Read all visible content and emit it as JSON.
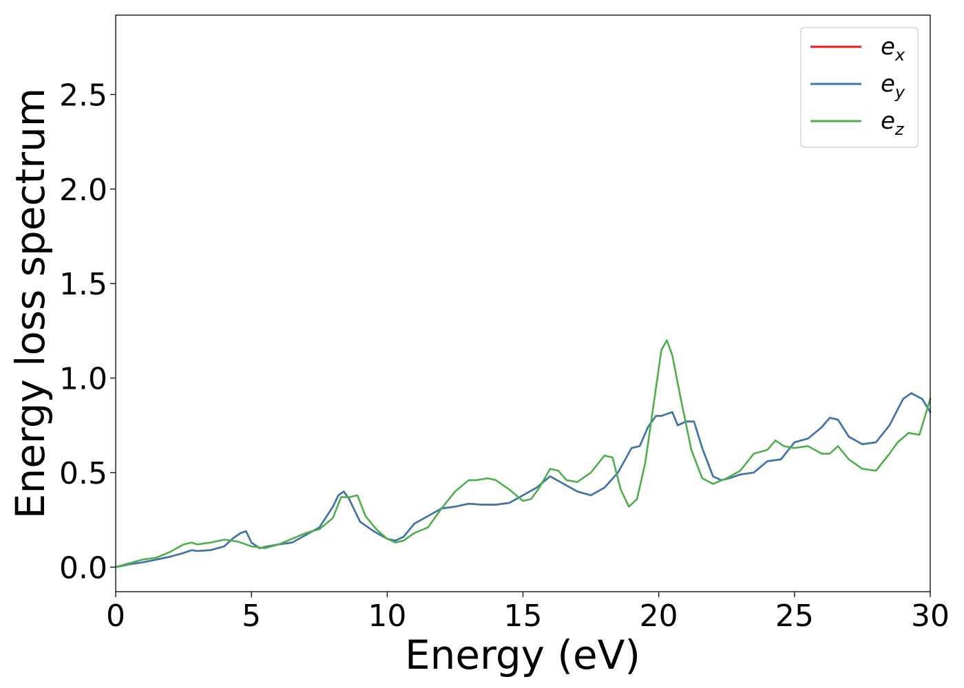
{
  "chart_data": {
    "type": "line",
    "title": "",
    "xlabel": "Energy (eV)",
    "ylabel": "Energy loss spectrum",
    "xlim": [
      0,
      30
    ],
    "ylim": [
      -0.13,
      2.92
    ],
    "xticks": [
      0,
      5,
      10,
      15,
      20,
      25,
      30
    ],
    "xtick_labels": [
      "0",
      "5",
      "10",
      "15",
      "20",
      "25",
      "30"
    ],
    "yticks": [
      0.0,
      0.5,
      1.0,
      1.5,
      2.0,
      2.5
    ],
    "ytick_labels": [
      "0.0",
      "0.5",
      "1.0",
      "1.5",
      "2.0",
      "2.5"
    ],
    "grid": false,
    "legend_position": "top-right",
    "series": [
      {
        "name": "e_x",
        "label_base": "e",
        "label_sub": "x",
        "color": "#e41a1c",
        "x": [
          0,
          0.5,
          1,
          1.5,
          2,
          2.5,
          2.8,
          3,
          3.5,
          4,
          4.3,
          4.6,
          4.8,
          5,
          5.3,
          5.6,
          6,
          6.5,
          7,
          7.5,
          8,
          8.2,
          8.4,
          8.6,
          9,
          9.5,
          10,
          10.3,
          10.6,
          11,
          11.5,
          12,
          12.5,
          13,
          13.5,
          14,
          14.5,
          15,
          15.5,
          16,
          16.5,
          17,
          17.5,
          18,
          18.5,
          19,
          19.3,
          19.6,
          19.9,
          20.1,
          20.3,
          20.5,
          20.7,
          21,
          21.3,
          21.6,
          22,
          22.3,
          22.6,
          23,
          23.5,
          24,
          24.5,
          25,
          25.5,
          26,
          26.3,
          26.6,
          27,
          27.5,
          28,
          28.5,
          29,
          29.3,
          29.7,
          30
        ],
        "values": [
          0,
          0.015,
          0.025,
          0.04,
          0.055,
          0.075,
          0.09,
          0.085,
          0.09,
          0.11,
          0.15,
          0.18,
          0.19,
          0.13,
          0.1,
          0.11,
          0.12,
          0.13,
          0.17,
          0.21,
          0.32,
          0.38,
          0.4,
          0.36,
          0.24,
          0.19,
          0.15,
          0.14,
          0.16,
          0.23,
          0.27,
          0.31,
          0.32,
          0.335,
          0.33,
          0.33,
          0.34,
          0.38,
          0.42,
          0.48,
          0.44,
          0.4,
          0.38,
          0.42,
          0.5,
          0.63,
          0.64,
          0.74,
          0.8,
          0.8,
          0.81,
          0.82,
          0.75,
          0.77,
          0.77,
          0.63,
          0.48,
          0.46,
          0.47,
          0.49,
          0.5,
          0.56,
          0.57,
          0.66,
          0.68,
          0.74,
          0.79,
          0.78,
          0.69,
          0.65,
          0.66,
          0.75,
          0.89,
          0.92,
          0.89,
          0.82
        ]
      },
      {
        "name": "e_y",
        "label_base": "e",
        "label_sub": "y",
        "color": "#3a78b0",
        "x": [
          0,
          0.5,
          1,
          1.5,
          2,
          2.5,
          2.8,
          3,
          3.5,
          4,
          4.3,
          4.6,
          4.8,
          5,
          5.3,
          5.6,
          6,
          6.5,
          7,
          7.5,
          8,
          8.2,
          8.4,
          8.6,
          9,
          9.5,
          10,
          10.3,
          10.6,
          11,
          11.5,
          12,
          12.5,
          13,
          13.5,
          14,
          14.5,
          15,
          15.5,
          16,
          16.5,
          17,
          17.5,
          18,
          18.5,
          19,
          19.3,
          19.6,
          19.9,
          20.1,
          20.3,
          20.5,
          20.7,
          21,
          21.3,
          21.6,
          22,
          22.3,
          22.6,
          23,
          23.5,
          24,
          24.5,
          25,
          25.5,
          26,
          26.3,
          26.6,
          27,
          27.5,
          28,
          28.5,
          29,
          29.3,
          29.7,
          30
        ],
        "values": [
          0,
          0.015,
          0.025,
          0.04,
          0.055,
          0.075,
          0.09,
          0.085,
          0.09,
          0.11,
          0.15,
          0.18,
          0.19,
          0.13,
          0.1,
          0.11,
          0.12,
          0.13,
          0.17,
          0.21,
          0.32,
          0.38,
          0.4,
          0.36,
          0.24,
          0.19,
          0.15,
          0.14,
          0.16,
          0.23,
          0.27,
          0.31,
          0.32,
          0.335,
          0.33,
          0.33,
          0.34,
          0.38,
          0.42,
          0.48,
          0.44,
          0.4,
          0.38,
          0.42,
          0.5,
          0.63,
          0.64,
          0.74,
          0.8,
          0.8,
          0.81,
          0.82,
          0.75,
          0.77,
          0.77,
          0.63,
          0.48,
          0.46,
          0.47,
          0.49,
          0.5,
          0.56,
          0.57,
          0.66,
          0.68,
          0.74,
          0.79,
          0.78,
          0.69,
          0.65,
          0.66,
          0.75,
          0.89,
          0.92,
          0.89,
          0.82
        ]
      },
      {
        "name": "e_z",
        "label_base": "e",
        "label_sub": "z",
        "color": "#4daf4a",
        "x": [
          0,
          0.5,
          1,
          1.5,
          2,
          2.5,
          2.8,
          3,
          3.5,
          4,
          4.5,
          5,
          5.5,
          6,
          6.5,
          7,
          7.5,
          8,
          8.3,
          8.6,
          8.9,
          9.2,
          9.6,
          10,
          10.3,
          10.6,
          11,
          11.5,
          12,
          12.5,
          13,
          13.3,
          13.7,
          14,
          14.5,
          15,
          15.3,
          15.6,
          16,
          16.3,
          16.6,
          17,
          17.5,
          18,
          18.3,
          18.6,
          18.9,
          19.2,
          19.5,
          19.8,
          20.1,
          20.3,
          20.5,
          20.8,
          21.2,
          21.6,
          22,
          22.5,
          23,
          23.5,
          24,
          24.3,
          24.6,
          25,
          25.5,
          26,
          26.3,
          26.6,
          27,
          27.5,
          28,
          28.5,
          28.8,
          29.2,
          29.6,
          30
        ],
        "values": [
          0,
          0.02,
          0.04,
          0.05,
          0.08,
          0.12,
          0.13,
          0.12,
          0.13,
          0.145,
          0.135,
          0.11,
          0.1,
          0.12,
          0.15,
          0.18,
          0.2,
          0.26,
          0.37,
          0.37,
          0.38,
          0.27,
          0.2,
          0.15,
          0.13,
          0.14,
          0.18,
          0.21,
          0.31,
          0.4,
          0.46,
          0.46,
          0.47,
          0.46,
          0.41,
          0.35,
          0.36,
          0.42,
          0.52,
          0.51,
          0.46,
          0.45,
          0.5,
          0.59,
          0.58,
          0.41,
          0.32,
          0.36,
          0.55,
          0.85,
          1.15,
          1.2,
          1.12,
          0.9,
          0.62,
          0.47,
          0.44,
          0.47,
          0.51,
          0.6,
          0.62,
          0.67,
          0.64,
          0.63,
          0.64,
          0.6,
          0.6,
          0.64,
          0.57,
          0.52,
          0.51,
          0.6,
          0.66,
          0.71,
          0.7,
          0.89
        ]
      }
    ]
  }
}
